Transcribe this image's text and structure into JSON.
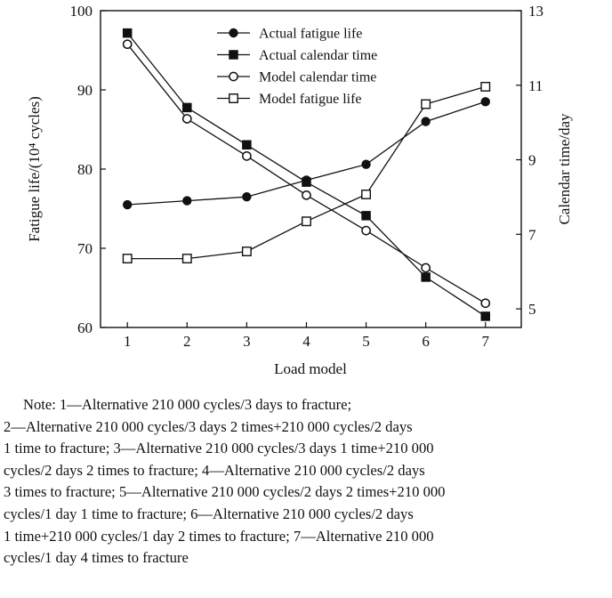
{
  "chart_data": {
    "type": "line",
    "x": [
      1,
      2,
      3,
      4,
      5,
      6,
      7
    ],
    "xlabel": "Load model",
    "ylabel_left": "Fatigue life/(10⁴ cycles)",
    "ylabel_right": "Calendar time/day",
    "xlim": [
      0.55,
      7.6
    ],
    "ylim_left": [
      60,
      100
    ],
    "ylim_right": [
      4.5,
      13
    ],
    "x_ticks": [
      1,
      2,
      3,
      4,
      5,
      6,
      7
    ],
    "y_ticks_left": [
      60,
      70,
      80,
      90,
      100
    ],
    "y_ticks_right": [
      5,
      7,
      9,
      11,
      13
    ],
    "series": [
      {
        "name": "Actual fatigue life",
        "axis": "left",
        "marker": "filled-circle",
        "values": [
          75.5,
          76.0,
          76.5,
          78.6,
          80.6,
          86.0,
          88.5
        ]
      },
      {
        "name": "Actual calendar time",
        "axis": "right",
        "marker": "filled-square",
        "values": [
          12.4,
          10.4,
          9.4,
          8.4,
          7.5,
          5.85,
          4.8
        ]
      },
      {
        "name": "Model calendar time",
        "axis": "right",
        "marker": "open-circle",
        "values": [
          12.1,
          10.1,
          9.1,
          8.05,
          7.1,
          6.1,
          5.15
        ]
      },
      {
        "name": "Model fatigue life",
        "axis": "left",
        "marker": "open-square",
        "values": [
          68.7,
          68.7,
          69.6,
          73.4,
          76.8,
          88.2,
          90.4
        ]
      }
    ],
    "legend_position": "top-center"
  },
  "note": {
    "lines": [
      "Note:  1—Alternative 210 000 cycles/3 days to fracture;",
      "2—Alternative 210 000 cycles/3 days 2 times+210 000 cycles/2 days",
      "1 time to fracture;  3—Alternative 210 000 cycles/3 days 1 time+210 000",
      "cycles/2 days 2 times to fracture;  4—Alternative 210 000 cycles/2 days",
      "3 times to fracture;  5—Alternative 210 000 cycles/2 days 2 times+210 000",
      "cycles/1 day 1 time to fracture;  6—Alternative 210 000 cycles/2 days",
      "1 time+210 000 cycles/1 day 2 times to fracture;  7—Alternative 210 000",
      "cycles/1 day 4 times to fracture"
    ]
  }
}
